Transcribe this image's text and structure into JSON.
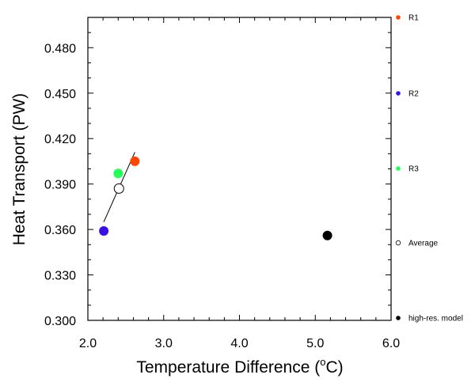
{
  "chart_data": {
    "type": "scatter",
    "title": "",
    "xlabel": "Temperature Difference (",
    "xlabel_unit_sup": "o",
    "xlabel_unit": "C)",
    "ylabel": "Heat Transport (PW)",
    "xlim": [
      2.0,
      6.0
    ],
    "ylim": [
      0.3,
      0.5
    ],
    "xticks": [
      "2.0",
      "3.0",
      "4.0",
      "5.0",
      "6.0"
    ],
    "xtick_values": [
      2.0,
      3.0,
      4.0,
      5.0,
      6.0
    ],
    "yticks": [
      "0.300",
      "0.330",
      "0.360",
      "0.390",
      "0.420",
      "0.450",
      "0.480"
    ],
    "ytick_values": [
      0.3,
      0.33,
      0.36,
      0.39,
      0.42,
      0.45,
      0.48
    ],
    "grid": false,
    "legend_placement": "right",
    "series": [
      {
        "name": "R1",
        "x": 2.62,
        "y": 0.405,
        "color": "#ff4500",
        "filled": true
      },
      {
        "name": "R2",
        "x": 2.21,
        "y": 0.359,
        "color": "#3a10e5",
        "filled": true
      },
      {
        "name": "R3",
        "x": 2.4,
        "y": 0.397,
        "color": "#22ff55",
        "filled": true
      },
      {
        "name": "Average",
        "x": 2.41,
        "y": 0.387,
        "color": "#000000",
        "filled": false
      },
      {
        "name": "high-res. model",
        "x": 5.16,
        "y": 0.356,
        "color": "#000000",
        "filled": true
      }
    ],
    "fit_line": {
      "x": [
        2.21,
        2.62
      ],
      "y": [
        0.365,
        0.411
      ]
    }
  }
}
